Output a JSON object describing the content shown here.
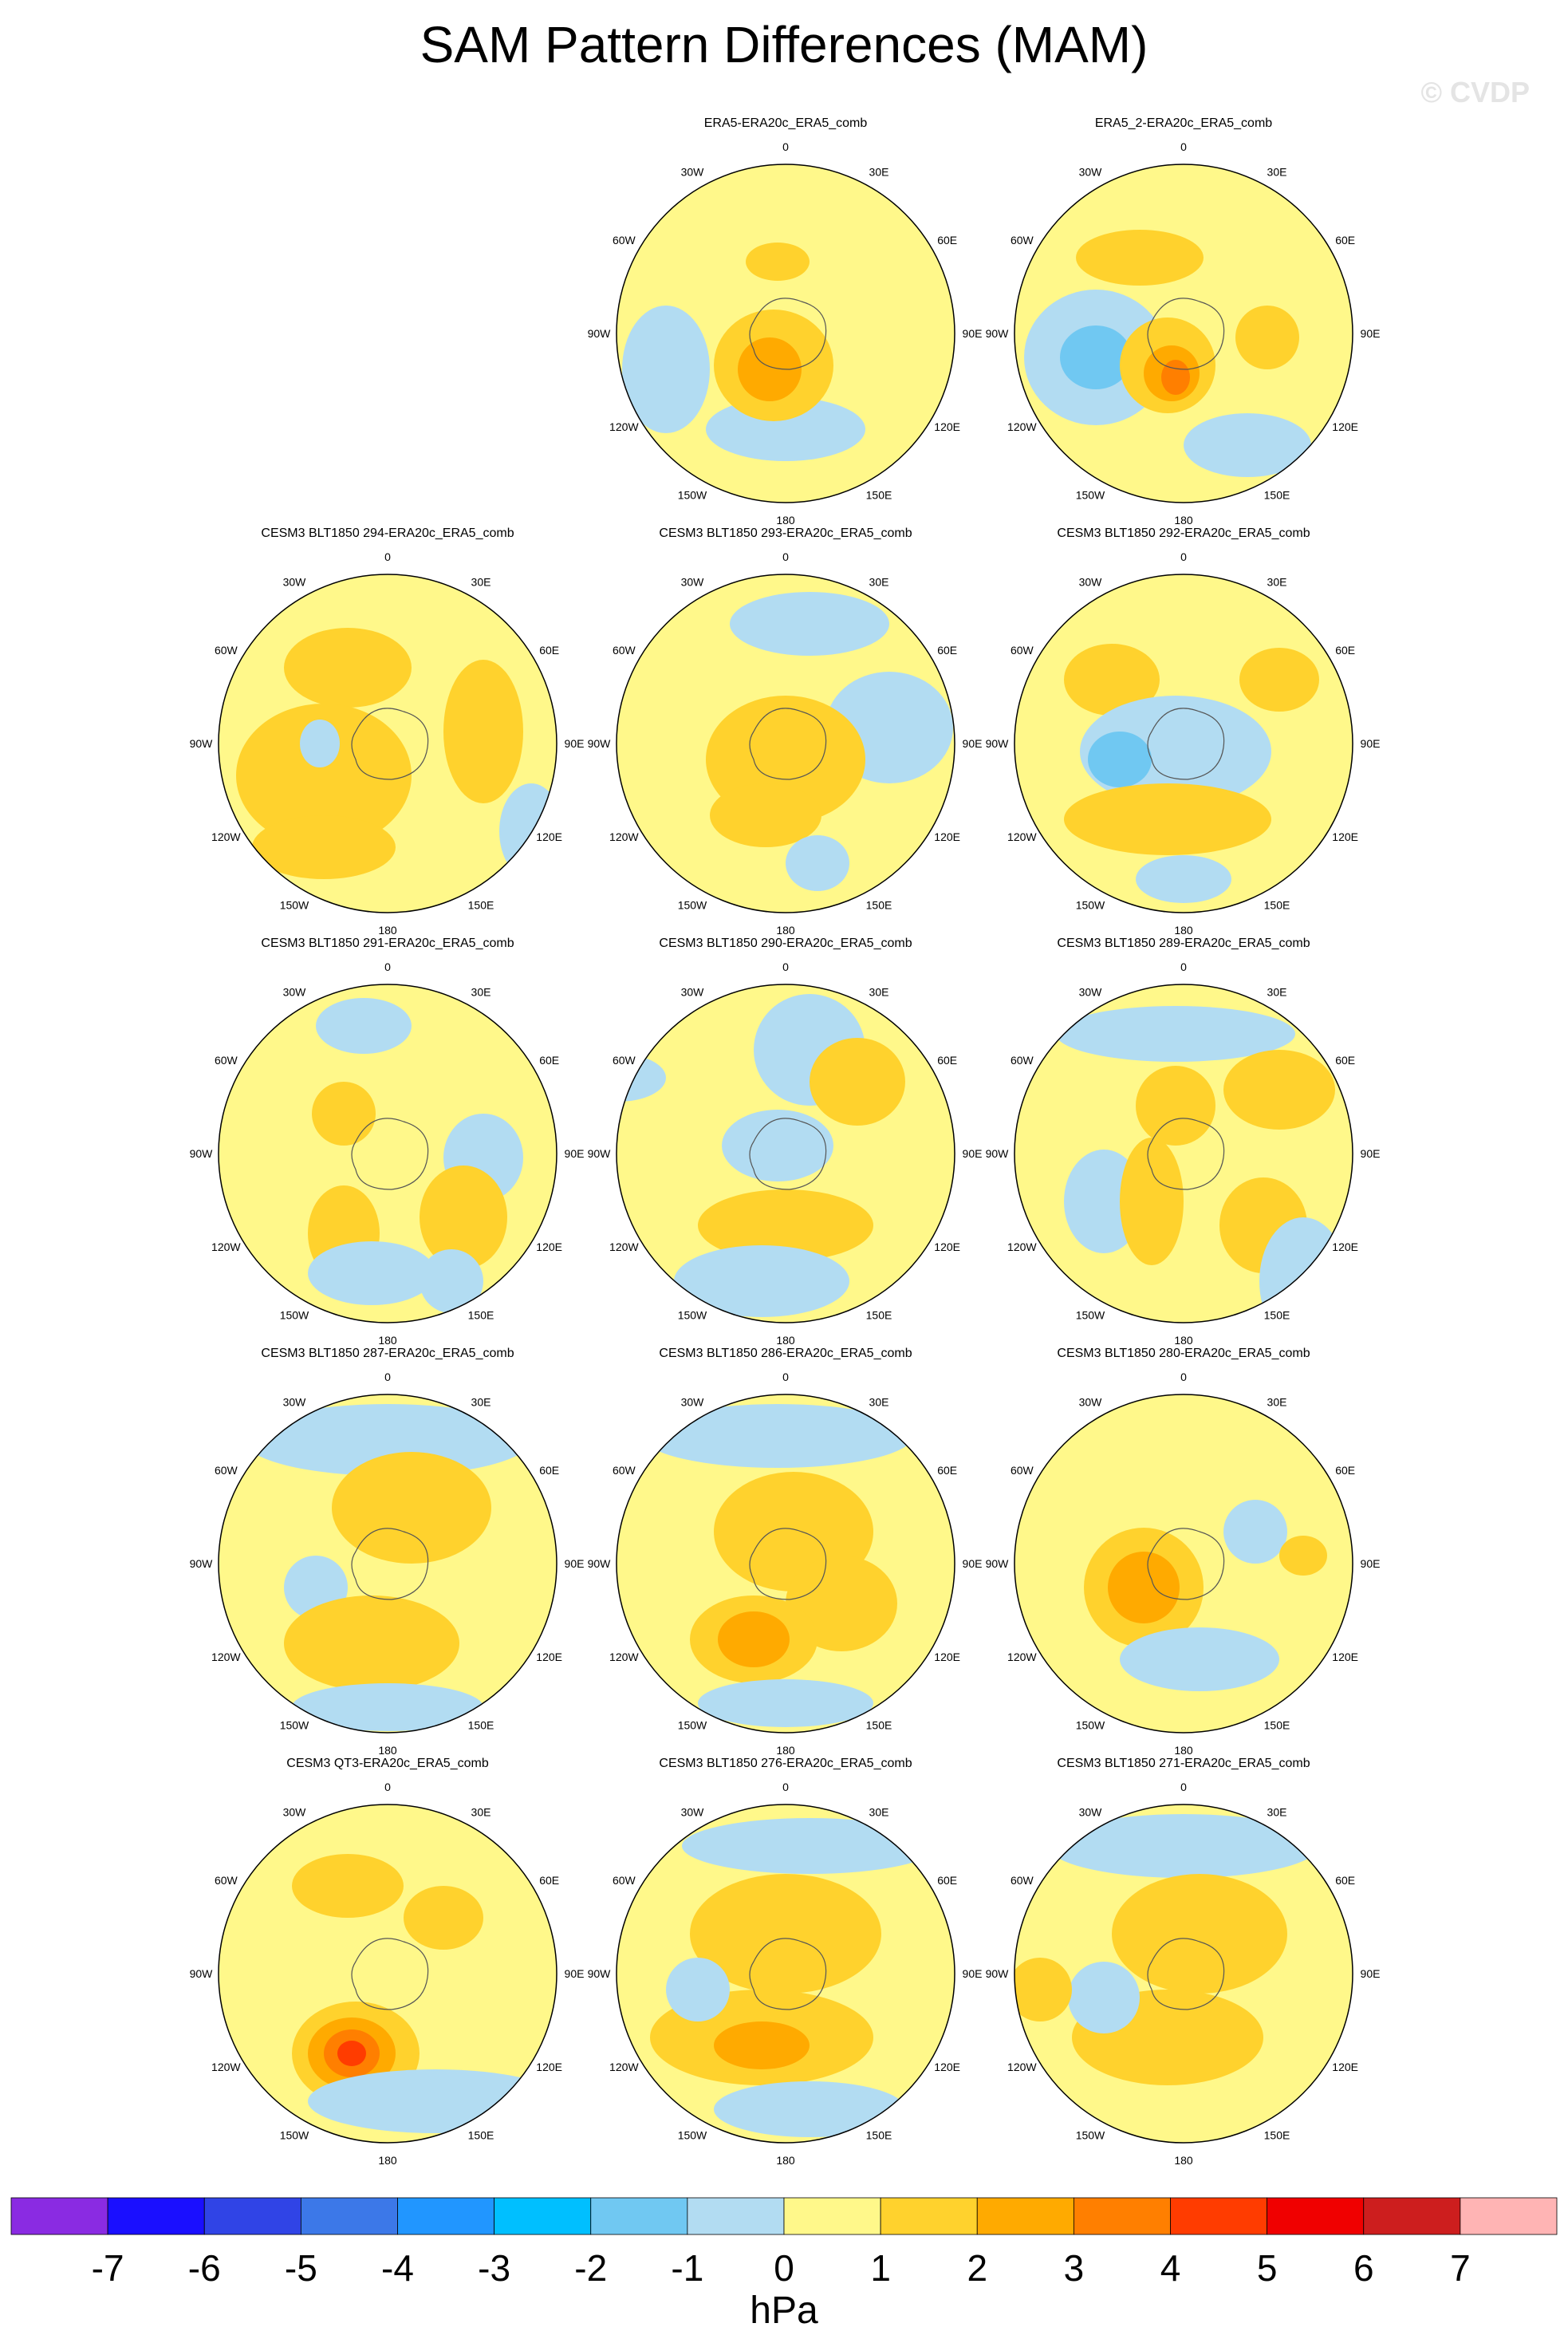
{
  "figure": {
    "title": "SAM Pattern Differences (MAM)",
    "watermark": "© CVDP"
  },
  "chart_data": {
    "type": "heatmap",
    "projection": "south-polar-stereographic",
    "units": "hPa",
    "colorbar": {
      "label": "hPa",
      "ticks": [
        "-7",
        "-6",
        "-5",
        "-4",
        "-3",
        "-2",
        "-1",
        "0",
        "1",
        "2",
        "3",
        "4",
        "5",
        "6",
        "7"
      ],
      "colors": [
        "#8a2be2",
        "#1a0fff",
        "#3044e6",
        "#3c78e8",
        "#2196ff",
        "#00bfff",
        "#70c8f2",
        "#b2dcf2",
        "#fff88a",
        "#ffd22d",
        "#ffaa00",
        "#ff7f00",
        "#ff3c00",
        "#f00000",
        "#cd1e1e",
        "#ffb4b4"
      ]
    },
    "lon_labels": [
      "0",
      "30E",
      "60E",
      "90E",
      "120E",
      "150E",
      "180",
      "150W",
      "120W",
      "90W",
      "60W",
      "30W"
    ],
    "panels": [
      {
        "title": "ERA5-ERA20c_ERA5_comb"
      },
      {
        "title": "ERA5_2-ERA20c_ERA5_comb"
      },
      {
        "title": "CESM3 BLT1850 294-ERA20c_ERA5_comb"
      },
      {
        "title": "CESM3 BLT1850 293-ERA20c_ERA5_comb"
      },
      {
        "title": "CESM3 BLT1850 292-ERA20c_ERA5_comb"
      },
      {
        "title": "CESM3 BLT1850 291-ERA20c_ERA5_comb"
      },
      {
        "title": "CESM3 BLT1850 290-ERA20c_ERA5_comb"
      },
      {
        "title": "CESM3 BLT1850 289-ERA20c_ERA5_comb"
      },
      {
        "title": "CESM3 BLT1850 287-ERA20c_ERA5_comb"
      },
      {
        "title": "CESM3 BLT1850 286-ERA20c_ERA5_comb"
      },
      {
        "title": "CESM3 BLT1850 280-ERA20c_ERA5_comb"
      },
      {
        "title": "CESM3 QT3-ERA20c_ERA5_comb"
      },
      {
        "title": "CESM3 BLT1850 276-ERA20c_ERA5_comb"
      },
      {
        "title": "CESM3 BLT1850 271-ERA20c_ERA5_comb"
      }
    ]
  }
}
